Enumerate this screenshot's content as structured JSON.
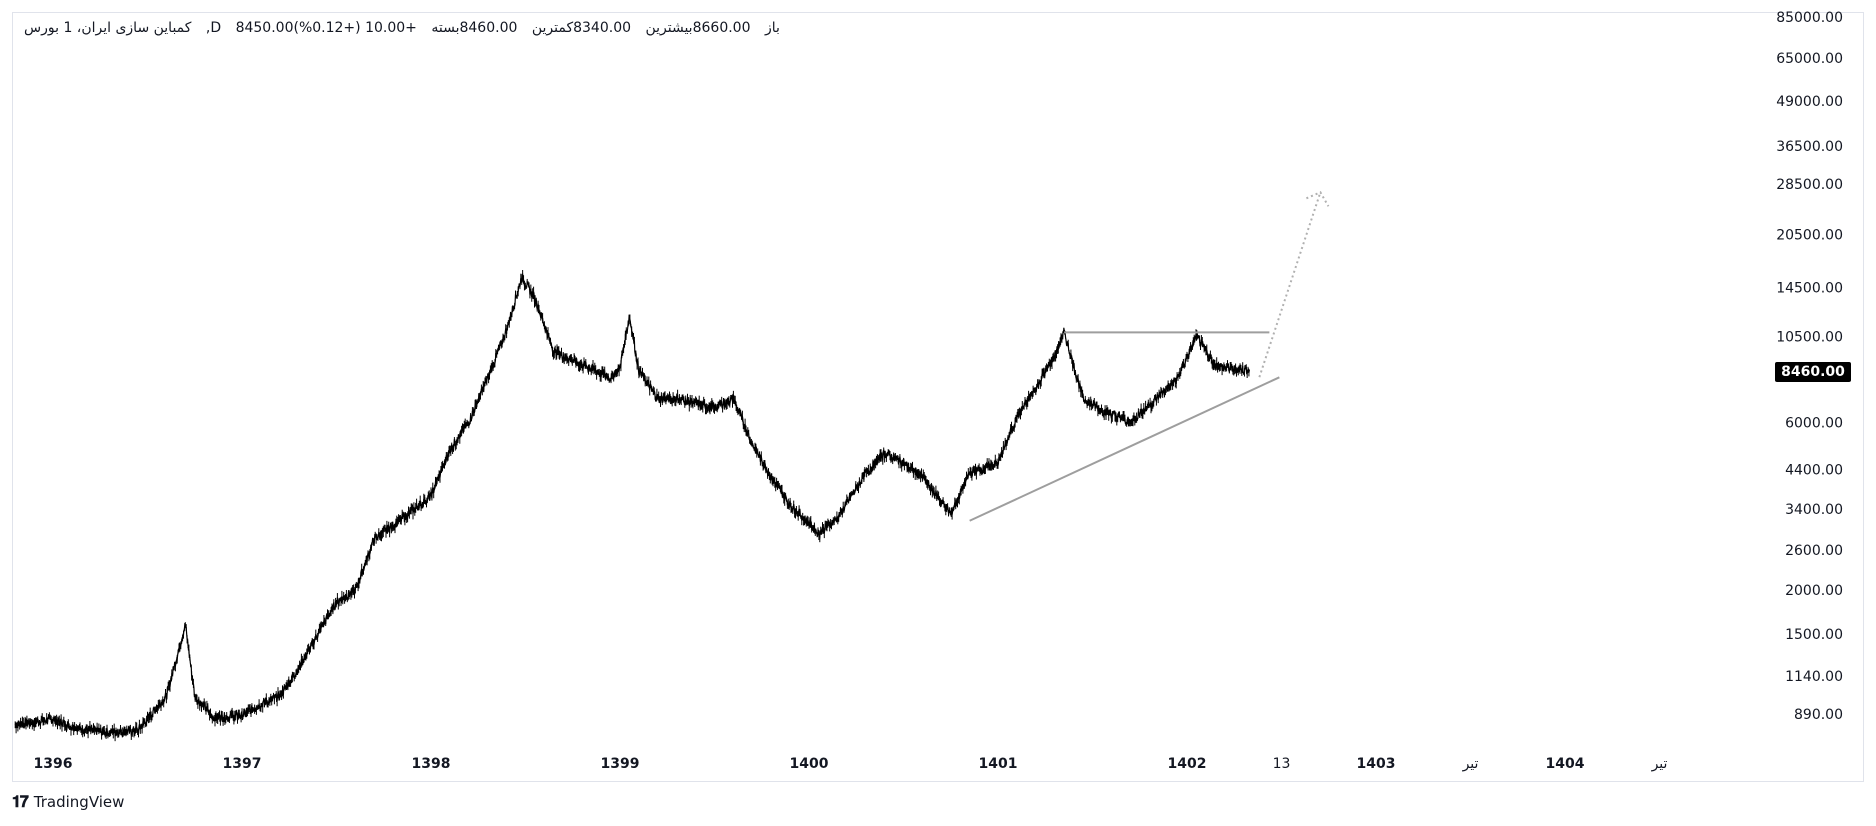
{
  "header": {
    "symbol": "کمباین سازی ایران، 1",
    "exchange": "بورس ,D",
    "open_label": "باز",
    "open": "8450.00",
    "high_label": "بیشترین",
    "high": "8660.00",
    "low_label": "کمترین",
    "low": "8340.00",
    "close_label": "بسته",
    "close": "8460.00",
    "change": "+10.00 (+0.12%)"
  },
  "last_price": "8460.00",
  "brand": "TradingView",
  "colors": {
    "candle": "#000000",
    "trendline": "#9e9e9e",
    "projection": "#b0b0b0",
    "axis_text": "#131722"
  },
  "chart_data": {
    "type": "line",
    "scale": "log",
    "y_ticks": [
      890,
      1140,
      1500,
      2000,
      2600,
      3400,
      4400,
      6000,
      10500,
      14500,
      20500,
      28500,
      36500,
      49000,
      65000,
      85000
    ],
    "x_ticks": [
      "1396",
      "1397",
      "1398",
      "1399",
      "1400",
      "1401",
      "1402",
      "13",
      "1403",
      "تیر",
      "1404",
      "تیر"
    ],
    "x_tick_years": [
      1396,
      1397,
      1398,
      1399,
      1400,
      1401,
      1402,
      1402.5,
      1403,
      1403.5,
      1404,
      1404.5
    ],
    "series": [
      {
        "x": [
          1395.8,
          1396.0,
          1396.1,
          1396.2,
          1396.3,
          1396.45,
          1396.6,
          1396.7,
          1396.75,
          1396.85,
          1397.0,
          1397.1,
          1397.2,
          1397.3,
          1397.4,
          1397.5,
          1397.6,
          1397.7,
          1397.85,
          1398.0,
          1398.1,
          1398.2,
          1398.3,
          1398.4,
          1398.48,
          1398.55,
          1398.65,
          1398.75,
          1398.85,
          1398.95,
          1399.0,
          1399.05,
          1399.1,
          1399.2,
          1399.3,
          1399.4,
          1399.5,
          1399.6,
          1399.7,
          1399.8,
          1399.9,
          1400.0,
          1400.05,
          1400.15,
          1400.3,
          1400.4,
          1400.5,
          1400.6,
          1400.75,
          1400.85,
          1401.0,
          1401.1,
          1401.2,
          1401.3,
          1401.35,
          1401.45,
          1401.55,
          1401.7,
          1401.8,
          1401.95,
          1402.05,
          1402.15,
          1402.25,
          1402.33
        ],
        "y": [
          830,
          860,
          820,
          800,
          790,
          800,
          1000,
          1600,
          1000,
          870,
          880,
          950,
          1000,
          1200,
          1500,
          1850,
          2000,
          2800,
          3200,
          3700,
          5000,
          6000,
          8000,
          11000,
          15500,
          13500,
          9500,
          9000,
          8500,
          8000,
          8600,
          12000,
          8400,
          7000,
          7000,
          6800,
          6600,
          7000,
          5200,
          4200,
          3500,
          3100,
          2900,
          3200,
          4300,
          4900,
          4600,
          4200,
          3300,
          4300,
          4600,
          6200,
          7500,
          9300,
          10800,
          7000,
          6500,
          6000,
          6700,
          8000,
          10500,
          8700,
          8500,
          8460
        ]
      }
    ],
    "annotations": {
      "support_line": {
        "x": [
          1400.85,
          1402.33
        ],
        "y": [
          3150,
          8050
        ]
      },
      "resistance_line": {
        "x": [
          1401.35,
          1402.33
        ],
        "y": [
          10800,
          10800
        ]
      },
      "projection": {
        "x": [
          1402.33,
          1402.6
        ],
        "y": [
          8060,
          27000
        ]
      }
    }
  }
}
